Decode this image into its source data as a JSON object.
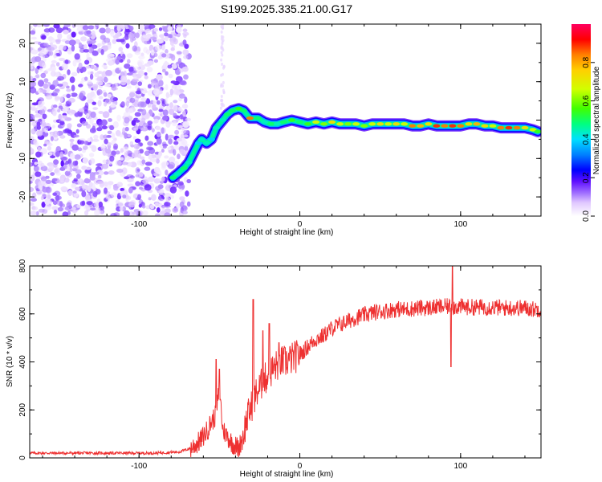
{
  "chart_data": [
    {
      "type": "heatmap",
      "title": "S199.2025.335.21.00.G17",
      "xlabel": "Height of straight line (km)",
      "ylabel": "Frequency (Hz)",
      "xlim": [
        -168,
        150
      ],
      "ylim": [
        -25,
        25
      ],
      "xticks": [
        {
          "v": -100,
          "label": "-100"
        },
        {
          "v": 0,
          "label": "0"
        },
        {
          "v": 100,
          "label": "100"
        }
      ],
      "yticks": [
        {
          "v": 20,
          "label": "20"
        },
        {
          "v": 10,
          "label": "10"
        },
        {
          "v": 0,
          "label": "0"
        },
        {
          "v": -10,
          "label": "-10"
        },
        {
          "v": -20,
          "label": "-20"
        }
      ],
      "colorbar": {
        "label": "Normalized spectral amplitude",
        "range": [
          0,
          1
        ],
        "ticks": [
          {
            "v": 0.0,
            "label": "0.0"
          },
          {
            "v": 0.2,
            "label": "0.2"
          },
          {
            "v": 0.4,
            "label": "0.4"
          },
          {
            "v": 0.6,
            "label": "0.6"
          },
          {
            "v": 0.8,
            "label": "0.8"
          }
        ],
        "colors": [
          "#ffffff",
          "#e0c8ff",
          "#a070ff",
          "#6010ff",
          "#0000ff",
          "#0080ff",
          "#00e0ff",
          "#00ff80",
          "#40ff00",
          "#d0ff00",
          "#ffd000",
          "#ff8000",
          "#ff0000",
          "#ff0060"
        ]
      },
      "noise_region_x": [
        -168,
        -72
      ],
      "ridge": [
        {
          "x": -79,
          "y": -15,
          "a": 0.55
        },
        {
          "x": -76,
          "y": -14,
          "a": 0.5
        },
        {
          "x": -72,
          "y": -12.5,
          "a": 0.55
        },
        {
          "x": -69,
          "y": -11,
          "a": 0.5
        },
        {
          "x": -63,
          "y": -6,
          "a": 0.45
        },
        {
          "x": -61,
          "y": -5,
          "a": 0.5
        },
        {
          "x": -58,
          "y": -6,
          "a": 0.5
        },
        {
          "x": -55,
          "y": -5,
          "a": 0.45
        },
        {
          "x": -52,
          "y": -2,
          "a": 0.5
        },
        {
          "x": -48,
          "y": 0,
          "a": 0.5
        },
        {
          "x": -45,
          "y": 1.5,
          "a": 0.55
        },
        {
          "x": -42,
          "y": 2.5,
          "a": 0.55
        },
        {
          "x": -38,
          "y": 3,
          "a": 0.6
        },
        {
          "x": -35,
          "y": 2.5,
          "a": 0.55
        },
        {
          "x": -31,
          "y": 0.5,
          "a": 0.85
        },
        {
          "x": -26,
          "y": 0.5,
          "a": 0.55
        },
        {
          "x": -22,
          "y": -0.5,
          "a": 0.5
        },
        {
          "x": -18,
          "y": -1,
          "a": 0.55
        },
        {
          "x": -14,
          "y": -1,
          "a": 0.5
        },
        {
          "x": -10,
          "y": -0.5,
          "a": 0.55
        },
        {
          "x": -5,
          "y": 0,
          "a": 0.6
        },
        {
          "x": 0,
          "y": -0.5,
          "a": 0.55
        },
        {
          "x": 5,
          "y": -1,
          "a": 0.6
        },
        {
          "x": 10,
          "y": -0.5,
          "a": 0.7
        },
        {
          "x": 15,
          "y": -1,
          "a": 0.65
        },
        {
          "x": 20,
          "y": -0.5,
          "a": 0.75
        },
        {
          "x": 25,
          "y": -1,
          "a": 0.7
        },
        {
          "x": 30,
          "y": -1,
          "a": 0.65
        },
        {
          "x": 35,
          "y": -1,
          "a": 0.7
        },
        {
          "x": 40,
          "y": -1.5,
          "a": 0.65
        },
        {
          "x": 45,
          "y": -1,
          "a": 0.7
        },
        {
          "x": 50,
          "y": -1,
          "a": 0.75
        },
        {
          "x": 55,
          "y": -1,
          "a": 0.7
        },
        {
          "x": 60,
          "y": -1,
          "a": 0.75
        },
        {
          "x": 65,
          "y": -1,
          "a": 0.7
        },
        {
          "x": 70,
          "y": -1.5,
          "a": 0.85
        },
        {
          "x": 75,
          "y": -1.5,
          "a": 0.8
        },
        {
          "x": 80,
          "y": -1,
          "a": 0.75
        },
        {
          "x": 85,
          "y": -1.5,
          "a": 0.9
        },
        {
          "x": 90,
          "y": -1.5,
          "a": 0.85
        },
        {
          "x": 95,
          "y": -1.5,
          "a": 0.9
        },
        {
          "x": 100,
          "y": -1.5,
          "a": 0.85
        },
        {
          "x": 105,
          "y": -1,
          "a": 0.75
        },
        {
          "x": 110,
          "y": -1,
          "a": 0.8
        },
        {
          "x": 115,
          "y": -1.5,
          "a": 0.75
        },
        {
          "x": 120,
          "y": -1.5,
          "a": 0.7
        },
        {
          "x": 125,
          "y": -2,
          "a": 0.85
        },
        {
          "x": 130,
          "y": -2,
          "a": 0.9
        },
        {
          "x": 135,
          "y": -2,
          "a": 0.85
        },
        {
          "x": 140,
          "y": -2,
          "a": 0.75
        },
        {
          "x": 145,
          "y": -2.5,
          "a": 0.7
        },
        {
          "x": 148,
          "y": -3,
          "a": 0.6
        }
      ]
    },
    {
      "type": "line",
      "xlabel": "Height of straight line (km)",
      "ylabel": "SNR (10 * v/v)",
      "xlim": [
        -168,
        150
      ],
      "ylim": [
        0,
        800
      ],
      "line_color": "#ee3030",
      "xticks": [
        {
          "v": -100,
          "label": "-100"
        },
        {
          "v": 0,
          "label": "0"
        },
        {
          "v": 100,
          "label": "100"
        }
      ],
      "yticks": [
        {
          "v": 0,
          "label": "0"
        },
        {
          "v": 200,
          "label": "200"
        },
        {
          "v": 400,
          "label": "400"
        },
        {
          "v": 600,
          "label": "600"
        },
        {
          "v": 800,
          "label": "800"
        }
      ],
      "series": [
        {
          "name": "SNR",
          "points": [
            [
              -168,
              20
            ],
            [
              -150,
              20
            ],
            [
              -130,
              20
            ],
            [
              -110,
              20
            ],
            [
              -90,
              20
            ],
            [
              -75,
              25
            ],
            [
              -68,
              40
            ],
            [
              -62,
              70
            ],
            [
              -58,
              110
            ],
            [
              -55,
              150
            ],
            [
              -52,
              180
            ],
            [
              -50,
              300
            ],
            [
              -48,
              120
            ],
            [
              -45,
              90
            ],
            [
              -42,
              60
            ],
            [
              -38,
              40
            ],
            [
              -35,
              100
            ],
            [
              -33,
              160
            ],
            [
              -31,
              200
            ],
            [
              -29,
              230
            ],
            [
              -27,
              270
            ],
            [
              -25,
              290
            ],
            [
              -23,
              320
            ],
            [
              -20,
              340
            ],
            [
              -18,
              360
            ],
            [
              -15,
              380
            ],
            [
              -12,
              400
            ],
            [
              -9,
              400
            ],
            [
              -6,
              410
            ],
            [
              -3,
              420
            ],
            [
              0,
              430
            ],
            [
              3,
              450
            ],
            [
              6,
              470
            ],
            [
              9,
              490
            ],
            [
              12,
              500
            ],
            [
              15,
              510
            ],
            [
              18,
              530
            ],
            [
              21,
              545
            ],
            [
              25,
              555
            ],
            [
              30,
              570
            ],
            [
              35,
              585
            ],
            [
              40,
              595
            ],
            [
              45,
              605
            ],
            [
              50,
              610
            ],
            [
              55,
              615
            ],
            [
              60,
              620
            ],
            [
              65,
              618
            ],
            [
              70,
              622
            ],
            [
              75,
              625
            ],
            [
              80,
              625
            ],
            [
              85,
              628
            ],
            [
              90,
              630
            ],
            [
              95,
              630
            ],
            [
              100,
              630
            ],
            [
              105,
              628
            ],
            [
              110,
              628
            ],
            [
              115,
              628
            ],
            [
              120,
              628
            ],
            [
              125,
              625
            ],
            [
              130,
              625
            ],
            [
              135,
              625
            ],
            [
              140,
              625
            ],
            [
              145,
              620
            ],
            [
              150,
              620
            ]
          ],
          "spikes": [
            {
              "x": -52,
              "v": 410
            },
            {
              "x": -50,
              "v": 370
            },
            {
              "x": -29,
              "v": 660
            },
            {
              "x": -23,
              "v": 530
            },
            {
              "x": -19,
              "v": 560
            },
            {
              "x": -13,
              "v": 480
            },
            {
              "x": 95,
              "v": 800
            },
            {
              "x": 94,
              "v": 380
            }
          ]
        }
      ]
    }
  ]
}
